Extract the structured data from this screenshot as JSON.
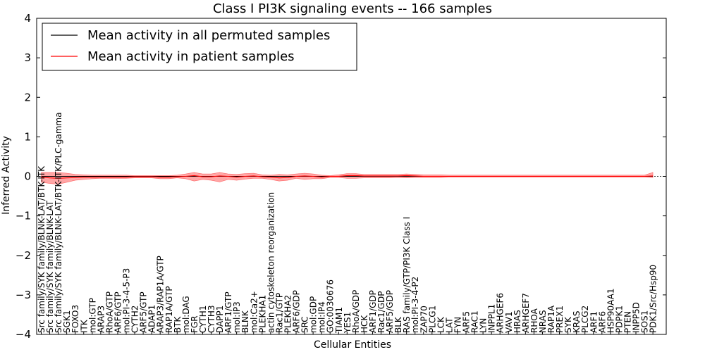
{
  "chart_data": {
    "type": "line",
    "title": "Class I PI3K signaling events -- 166 samples",
    "xlabel": "Cellular Entities",
    "ylabel": "Inferred Activity",
    "ylim": [
      -4,
      4
    ],
    "yticks": [
      -4,
      -3,
      -2,
      -1,
      0,
      1,
      2,
      3,
      4
    ],
    "ytick_labels": [
      "−4",
      "−3",
      "−2",
      "−1",
      "0",
      "1",
      "2",
      "3",
      "4"
    ],
    "grid": false,
    "legend_position": "top-left",
    "categories": [
      "Src family/SYK family/BLNK-LAT/BTK-ITK",
      "Src family/SYK family/BLNK-LAT",
      "Src family/SYK family/BLNK-LAT/BTK-ITK/PLC-gamma",
      "SGK1",
      "FOXO3",
      "ITK",
      "mol:GTP",
      "ARAP3",
      "RhoA/GTP",
      "ARF6/GTP",
      "mol:PI-3-4-5-P3",
      "CYTH2",
      "ARF5/GTP",
      "ADAP1",
      "ARAP3/RAP1A/GTP",
      "RAP1A/GTP",
      "BTK",
      "mol:DAG",
      "FGR",
      "CYTH1",
      "CYTH3",
      "DAPP1",
      "ARF1/GTP",
      "mol:IP3",
      "BLNK",
      "mol:Ca2+",
      "PLEKHA1",
      "actin cytoskeleton reorganization",
      "Rac1/GTP",
      "PLEKHA2",
      "ARF6/GDP",
      "SRC",
      "mol:GDP",
      "mol:IP4",
      "GO:0030676",
      "TIAM1",
      "YES1",
      "RhoA/GDP",
      "HCK",
      "ARF1/GDP",
      "Rac1/GDP",
      "ARF5/GDP",
      "BLK",
      "RAS family/GTP/PI3K Class I",
      "mol:PI-3-4-P2",
      "ZAP70",
      "PLCG1",
      "LCK",
      "LAT",
      "FYN",
      "ARF5",
      "RAC1",
      "LYN",
      "INPPL1",
      "ARHGEF6",
      "VAV1",
      "HRAS",
      "ARHGEF7",
      "RHOA",
      "NRAS",
      "RAP1A",
      "PREX1",
      "SYK",
      "KRAS",
      "PLCG2",
      "ARF1",
      "ARF6",
      "HSP90AA1",
      "PDPK1",
      "PTEN",
      "INPP5D",
      "SOS1",
      "PDK1/Src/Hsp90"
    ],
    "series": [
      {
        "name": "Mean activity in all permuted samples",
        "color": "#000000",
        "values": [
          0,
          0,
          0,
          0,
          0,
          0,
          0,
          0,
          0,
          0,
          0,
          0,
          0,
          0,
          0,
          0,
          0,
          0,
          0,
          0,
          0,
          0,
          0,
          0,
          0,
          0,
          0,
          0,
          0,
          0,
          0,
          0,
          0,
          0,
          0,
          0,
          0,
          0,
          0,
          0,
          0,
          0,
          0,
          0,
          0,
          0,
          0,
          0,
          0,
          0,
          0,
          0,
          0,
          0,
          0,
          0,
          0,
          0,
          0,
          0,
          0,
          0,
          0,
          0,
          0,
          0,
          0,
          0,
          0,
          0,
          0,
          0,
          0
        ]
      },
      {
        "name": "Mean activity in patient samples",
        "color": "#ff0000",
        "values": [
          -0.02,
          -0.04,
          -0.05,
          -0.04,
          -0.03,
          -0.02,
          -0.02,
          -0.02,
          -0.02,
          -0.02,
          -0.02,
          -0.01,
          -0.01,
          -0.01,
          -0.02,
          -0.02,
          -0.01,
          0.0,
          0.02,
          -0.01,
          -0.01,
          0.01,
          0.0,
          -0.02,
          0.0,
          0.01,
          -0.01,
          -0.02,
          -0.04,
          -0.03,
          0.0,
          0.01,
          0.0,
          -0.02,
          0.0,
          0.0,
          0.02,
          0.02,
          0.01,
          0.01,
          0.01,
          0.01,
          0.01,
          0.02,
          0.01,
          0.0,
          0.0,
          0.0,
          0.0,
          0.0,
          0.0,
          0.0,
          0.0,
          0.0,
          0.0,
          0.0,
          0.0,
          0.0,
          0.0,
          0.0,
          0.0,
          0.0,
          0.0,
          0.0,
          0.0,
          0.0,
          0.0,
          0.0,
          0.0,
          0.0,
          0.0,
          0.0,
          0.01
        ]
      }
    ],
    "band": {
      "color": "#ff0000",
      "lower": [
        -0.15,
        -0.18,
        -0.2,
        -0.15,
        -0.1,
        -0.08,
        -0.06,
        -0.05,
        -0.05,
        -0.05,
        -0.05,
        -0.04,
        -0.04,
        -0.04,
        -0.06,
        -0.06,
        -0.04,
        -0.06,
        -0.12,
        -0.08,
        -0.1,
        -0.14,
        -0.08,
        -0.1,
        -0.07,
        -0.05,
        -0.05,
        -0.08,
        -0.12,
        -0.1,
        -0.05,
        -0.08,
        -0.06,
        -0.06,
        -0.03,
        -0.03,
        -0.05,
        -0.05,
        -0.04,
        -0.04,
        -0.04,
        -0.04,
        -0.03,
        -0.04,
        -0.03,
        -0.03,
        -0.03,
        -0.03,
        -0.02,
        -0.02,
        -0.02,
        -0.02,
        -0.02,
        -0.02,
        -0.02,
        -0.02,
        -0.02,
        -0.02,
        -0.02,
        -0.02,
        -0.02,
        -0.02,
        -0.02,
        -0.02,
        -0.02,
        -0.02,
        -0.02,
        -0.02,
        -0.02,
        -0.02,
        -0.02,
        -0.02,
        -0.03
      ],
      "upper": [
        0.1,
        0.1,
        0.1,
        0.08,
        0.05,
        0.04,
        0.03,
        0.03,
        0.03,
        0.03,
        0.03,
        0.02,
        0.02,
        0.02,
        0.02,
        0.02,
        0.03,
        0.06,
        0.1,
        0.06,
        0.06,
        0.1,
        0.06,
        0.05,
        0.07,
        0.08,
        0.04,
        0.03,
        0.05,
        0.04,
        0.06,
        0.08,
        0.06,
        0.03,
        0.02,
        0.04,
        0.07,
        0.07,
        0.05,
        0.05,
        0.05,
        0.05,
        0.05,
        0.06,
        0.05,
        0.04,
        0.04,
        0.04,
        0.03,
        0.03,
        0.03,
        0.03,
        0.03,
        0.03,
        0.03,
        0.03,
        0.03,
        0.03,
        0.03,
        0.03,
        0.03,
        0.03,
        0.03,
        0.03,
        0.03,
        0.03,
        0.03,
        0.03,
        0.03,
        0.03,
        0.03,
        0.03,
        0.1
      ]
    }
  }
}
